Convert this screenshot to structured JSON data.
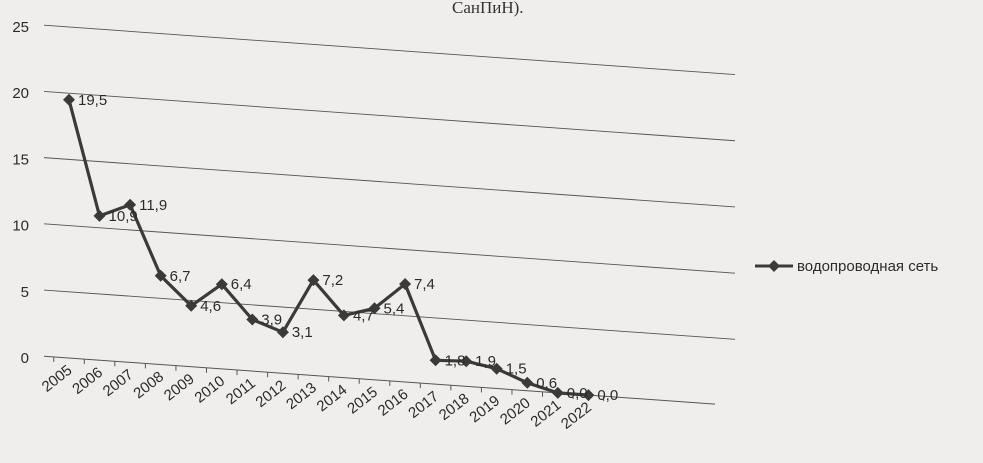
{
  "page": {
    "caption": "СанПиН)."
  },
  "colors": {
    "background": "#efeeec",
    "series_line": "#3a3a3a",
    "gridline": "#555555",
    "text": "#2b2b2b"
  },
  "chart_data": {
    "type": "line",
    "title": "",
    "xlabel": "",
    "ylabel": "",
    "categories": [
      "2005",
      "2006",
      "2007",
      "2008",
      "2009",
      "2010",
      "2011",
      "2012",
      "2013",
      "2014",
      "2015",
      "2016",
      "2017",
      "2018",
      "2019",
      "2020",
      "2021",
      "2022"
    ],
    "series": [
      {
        "name": "водопроводная сеть",
        "values": [
          19.5,
          10.9,
          11.9,
          6.7,
          4.6,
          6.4,
          3.9,
          3.1,
          7.2,
          4.7,
          5.4,
          7.4,
          1.8,
          1.9,
          1.5,
          0.6,
          0.0,
          0.0
        ],
        "data_labels": [
          "19,5",
          "10,9",
          "11,9",
          "6,7",
          "4,6",
          "6,4",
          "3,9",
          "3,1",
          "7,2",
          "4,7",
          "5,4",
          "7,4",
          "1,8",
          "1,9",
          "1,5",
          "0,6",
          "0,0",
          "0,0"
        ]
      }
    ],
    "ylim": [
      0,
      25
    ],
    "yticks": [
      0,
      5,
      10,
      15,
      20,
      25
    ],
    "ytick_labels": [
      "0",
      "5",
      "10",
      "15",
      "20",
      "25"
    ],
    "grid": true,
    "legend_position": "right",
    "marker": "diamond"
  }
}
